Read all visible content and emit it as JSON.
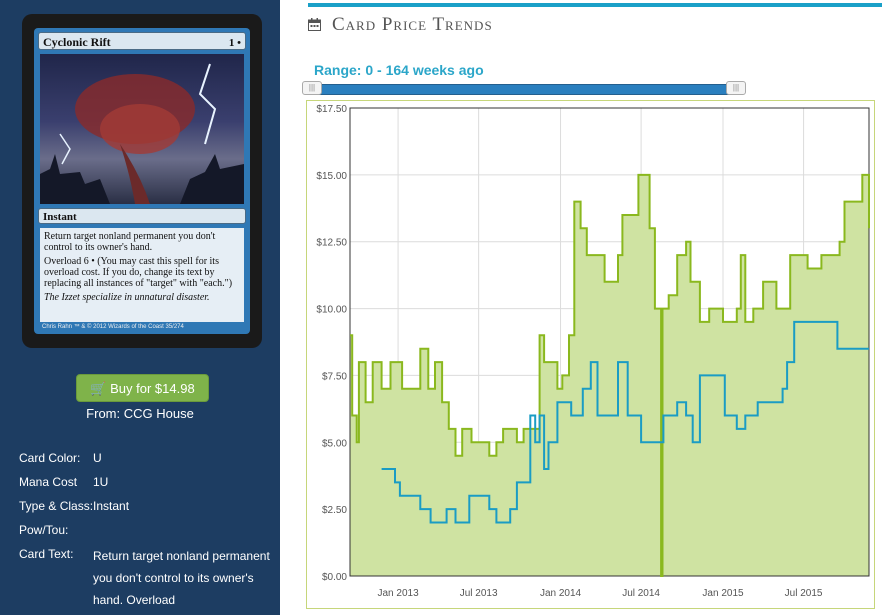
{
  "card": {
    "name": "Cyclonic Rift",
    "mana_symbols": "1 •",
    "type_line": "Instant",
    "rules_text": "Return target nonland permanent you don't control to its owner's hand.",
    "overload_text": "Overload 6 • (You may cast this spell for its overload cost. If you do, change its text by replacing all instances of \"target\" with \"each.\")",
    "flavor_text": "The Izzet specialize in unnatural disaster.",
    "artist": "Chris Rahn",
    "copyright": "™ & © 2012 Wizards of the Coast 35/274"
  },
  "buy": {
    "icon": "shopping-cart-icon",
    "label": "Buy for $14.98",
    "from": "From: CCG House"
  },
  "attributes": [
    {
      "label": "Card Color:",
      "value": "U"
    },
    {
      "label": "Mana Cost",
      "value": "1U"
    },
    {
      "label": "Type & Class:",
      "value": "Instant"
    },
    {
      "label": "Pow/Tou:",
      "value": ""
    },
    {
      "label": "Card Text:",
      "value": "Return target nonland permanent you don't control to its owner's hand. Overload"
    }
  ],
  "price_trends": {
    "icon": "calendar-icon",
    "title": "Card Price Trends",
    "range_label": "Range: 0 - 164 weeks ago"
  },
  "colors": {
    "series_green": "#8ab81e",
    "series_blue": "#1a9cc4",
    "fill": "#cfe3a2",
    "accent": "#1aa0c8"
  },
  "chart_data": {
    "type": "line",
    "ylim": [
      0,
      17.5
    ],
    "yticks": [
      "$0.00",
      "$2.50",
      "$5.00",
      "$7.50",
      "$10.00",
      "$12.50",
      "$15.00",
      "$17.50"
    ],
    "ytick_values": [
      0,
      2.5,
      5,
      7.5,
      10,
      12.5,
      15,
      17.5
    ],
    "xlim": [
      "2012-09-15",
      "2015-11-25"
    ],
    "xticks": [
      "Jan 2013",
      "Jul 2013",
      "Jan 2014",
      "Jul 2014",
      "Jan 2015",
      "Jul 2015"
    ],
    "xtick_dates": [
      "2013-01-01",
      "2013-07-01",
      "2014-01-01",
      "2014-07-01",
      "2015-01-01",
      "2015-07-01"
    ],
    "grid": true,
    "series": [
      {
        "points": [
          [
            "2012-09-15",
            9.0
          ],
          [
            "2012-09-20",
            6.0
          ],
          [
            "2012-09-30",
            5.0
          ],
          [
            "2012-10-05",
            8.0
          ],
          [
            "2012-10-20",
            6.5
          ],
          [
            "2012-11-05",
            8.0
          ],
          [
            "2012-11-25",
            7.0
          ],
          [
            "2012-12-15",
            8.0
          ],
          [
            "2013-01-10",
            7.0
          ],
          [
            "2013-02-10",
            7.0
          ],
          [
            "2013-02-20",
            8.5
          ],
          [
            "2013-03-10",
            7.0
          ],
          [
            "2013-03-25",
            8.0
          ],
          [
            "2013-04-10",
            6.5
          ],
          [
            "2013-04-25",
            5.5
          ],
          [
            "2013-05-10",
            4.5
          ],
          [
            "2013-05-25",
            5.5
          ],
          [
            "2013-06-15",
            5.0
          ],
          [
            "2013-07-05",
            5.0
          ],
          [
            "2013-07-25",
            4.5
          ],
          [
            "2013-08-10",
            5.0
          ],
          [
            "2013-08-25",
            5.5
          ],
          [
            "2013-09-10",
            5.5
          ],
          [
            "2013-09-25",
            5.0
          ],
          [
            "2013-10-10",
            5.5
          ],
          [
            "2013-10-25",
            5.5
          ],
          [
            "2013-11-15",
            9.0
          ],
          [
            "2013-11-25",
            8.0
          ],
          [
            "2013-12-15",
            8.0
          ],
          [
            "2013-12-25",
            7.0
          ],
          [
            "2014-01-05",
            7.5
          ],
          [
            "2014-01-20",
            9.0
          ],
          [
            "2014-02-01",
            14.0
          ],
          [
            "2014-02-15",
            13.0
          ],
          [
            "2014-03-01",
            12.0
          ],
          [
            "2014-03-20",
            12.0
          ],
          [
            "2014-04-10",
            11.0
          ],
          [
            "2014-05-10",
            12.0
          ],
          [
            "2014-05-20",
            13.5
          ],
          [
            "2014-06-10",
            13.5
          ],
          [
            "2014-06-20",
            13.5
          ],
          [
            "2014-06-25",
            15.0
          ],
          [
            "2014-07-10",
            15.0
          ],
          [
            "2014-07-20",
            13.0
          ],
          [
            "2014-08-01",
            10.0
          ],
          [
            "2014-08-10",
            10.0
          ],
          [
            "2014-08-15",
            0.0
          ],
          [
            "2014-08-18",
            10.0
          ],
          [
            "2014-09-01",
            10.5
          ],
          [
            "2014-09-20",
            12.0
          ],
          [
            "2014-10-10",
            12.5
          ],
          [
            "2014-10-20",
            11.0
          ],
          [
            "2014-11-10",
            9.5
          ],
          [
            "2014-12-01",
            10.0
          ],
          [
            "2015-01-01",
            9.5
          ],
          [
            "2015-02-01",
            10.0
          ],
          [
            "2015-02-10",
            12.0
          ],
          [
            "2015-02-20",
            9.5
          ],
          [
            "2015-03-10",
            10.0
          ],
          [
            "2015-04-01",
            11.0
          ],
          [
            "2015-05-01",
            10.0
          ],
          [
            "2015-06-01",
            12.0
          ],
          [
            "2015-06-15",
            12.0
          ],
          [
            "2015-07-10",
            11.5
          ],
          [
            "2015-08-10",
            12.0
          ],
          [
            "2015-09-20",
            12.5
          ],
          [
            "2015-10-01",
            14.0
          ],
          [
            "2015-11-01",
            14.0
          ],
          [
            "2015-11-10",
            15.0
          ],
          [
            "2015-11-25",
            13.0
          ]
        ]
      },
      {
        "points": [
          [
            "2012-11-25",
            4.0
          ],
          [
            "2012-12-25",
            3.5
          ],
          [
            "2013-01-05",
            3.0
          ],
          [
            "2013-02-20",
            2.5
          ],
          [
            "2013-03-15",
            2.0
          ],
          [
            "2013-04-20",
            2.5
          ],
          [
            "2013-05-10",
            2.0
          ],
          [
            "2013-06-10",
            3.0
          ],
          [
            "2013-07-25",
            2.5
          ],
          [
            "2013-08-10",
            2.0
          ],
          [
            "2013-09-10",
            2.5
          ],
          [
            "2013-09-25",
            3.5
          ],
          [
            "2013-10-25",
            6.0
          ],
          [
            "2013-11-05",
            5.0
          ],
          [
            "2013-11-15",
            6.0
          ],
          [
            "2013-11-25",
            4.0
          ],
          [
            "2013-12-05",
            5.0
          ],
          [
            "2013-12-25",
            6.5
          ],
          [
            "2014-01-25",
            6.0
          ],
          [
            "2014-02-20",
            7.0
          ],
          [
            "2014-03-10",
            8.0
          ],
          [
            "2014-03-25",
            6.0
          ],
          [
            "2014-04-10",
            6.0
          ],
          [
            "2014-05-10",
            8.0
          ],
          [
            "2014-06-01",
            6.0
          ],
          [
            "2014-07-01",
            5.0
          ],
          [
            "2014-08-01",
            5.0
          ],
          [
            "2014-08-20",
            6.0
          ],
          [
            "2014-09-20",
            6.5
          ],
          [
            "2014-10-10",
            6.0
          ],
          [
            "2014-10-25",
            5.0
          ],
          [
            "2014-11-10",
            7.5
          ],
          [
            "2014-12-20",
            7.5
          ],
          [
            "2015-01-05",
            6.0
          ],
          [
            "2015-02-01",
            5.5
          ],
          [
            "2015-02-20",
            6.0
          ],
          [
            "2015-03-20",
            6.5
          ],
          [
            "2015-05-15",
            7.0
          ],
          [
            "2015-05-25",
            8.0
          ],
          [
            "2015-06-10",
            9.5
          ],
          [
            "2015-08-01",
            9.5
          ],
          [
            "2015-09-15",
            8.5
          ],
          [
            "2015-11-25",
            8.5
          ]
        ]
      }
    ]
  }
}
